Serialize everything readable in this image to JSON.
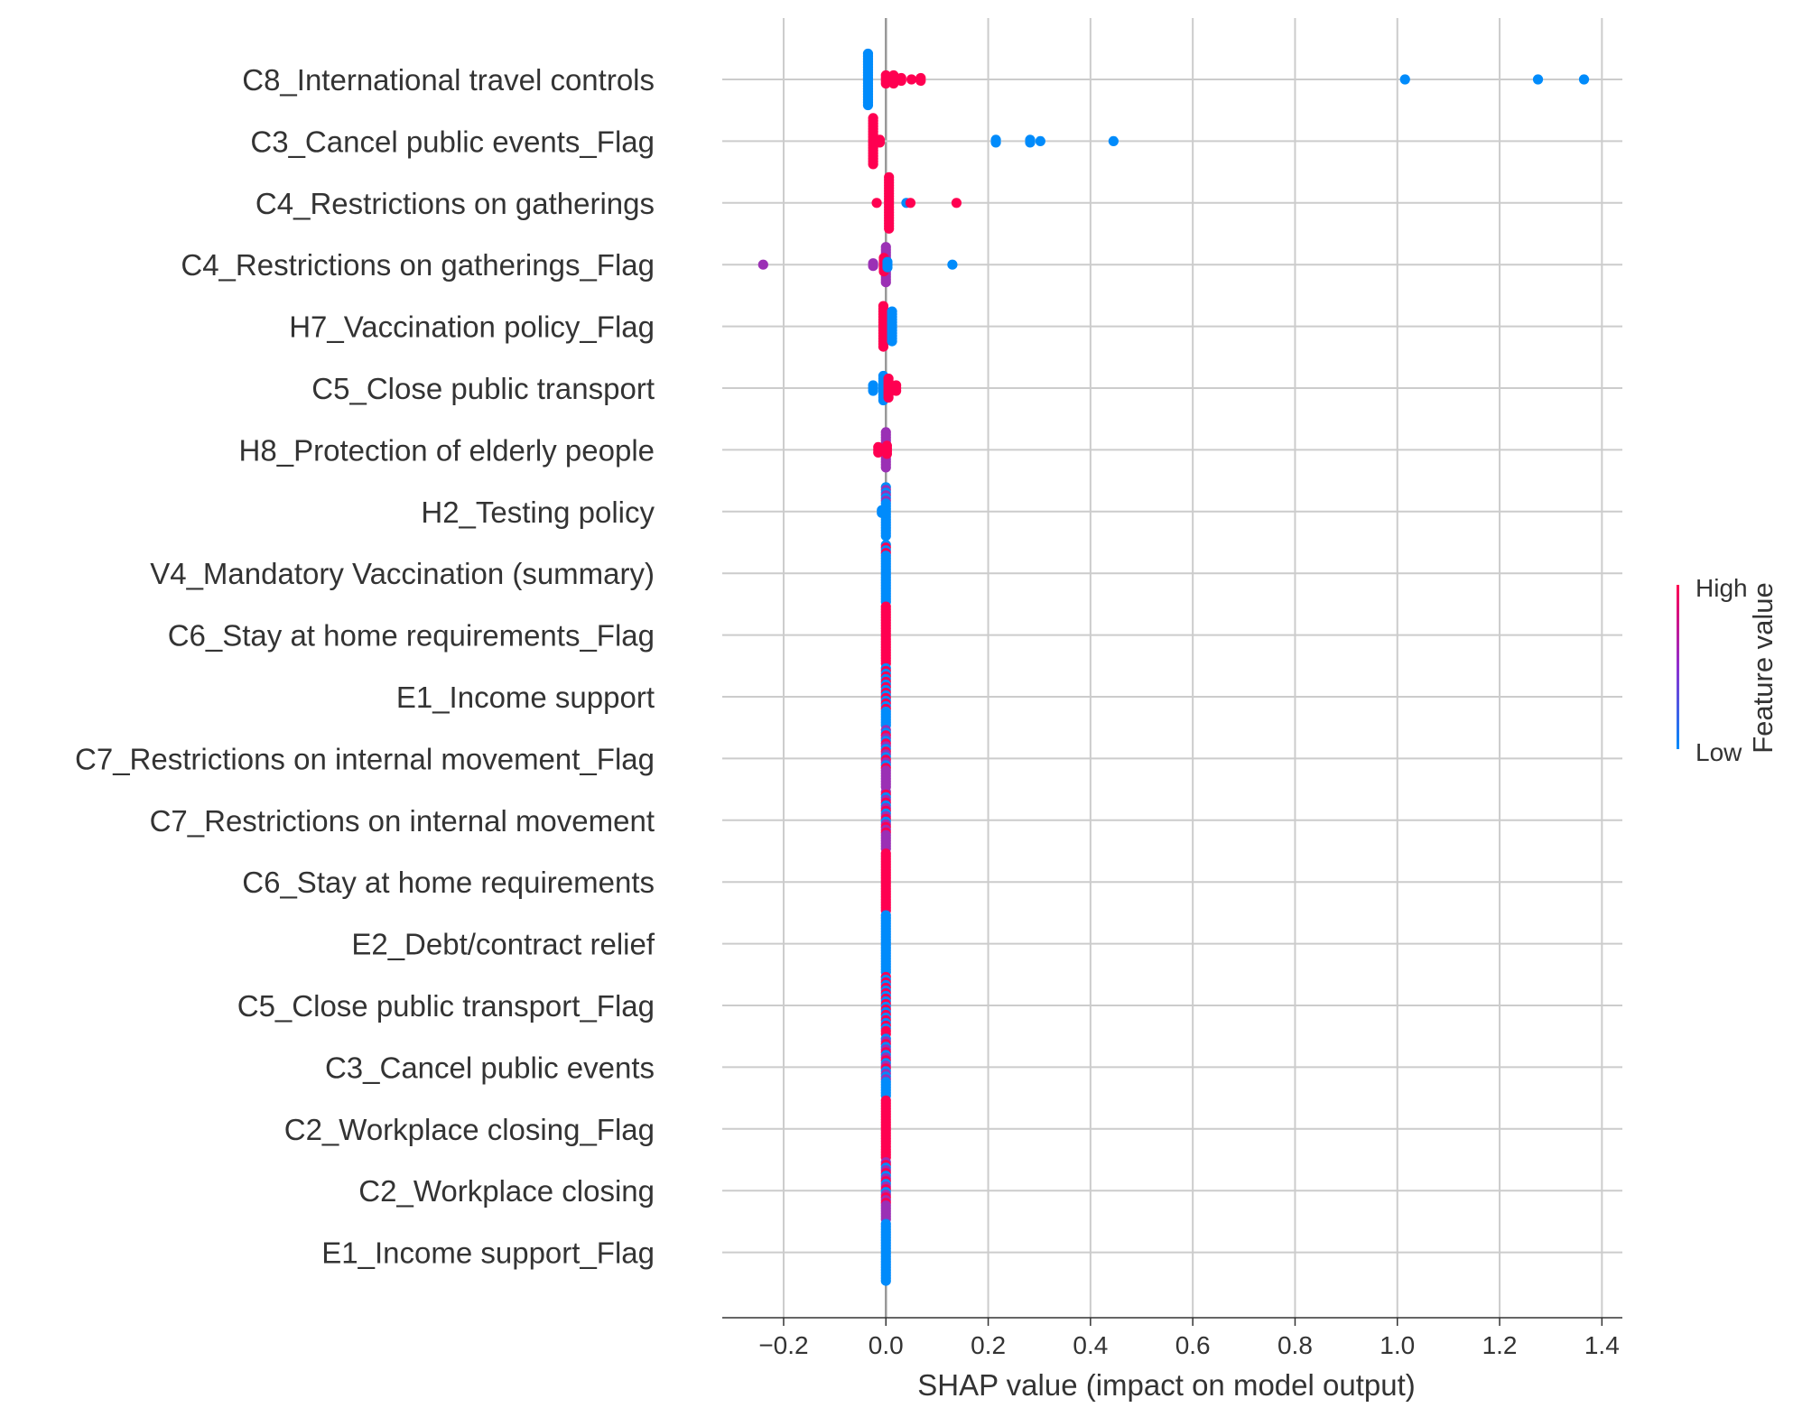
{
  "chart_data": {
    "type": "scatter",
    "subtype": "shap-beeswarm",
    "xlabel": "SHAP value (impact on model output)",
    "xlim": [
      -0.32,
      1.44
    ],
    "xticks": [
      -0.2,
      0.0,
      0.2,
      0.4,
      0.6,
      0.8,
      1.0,
      1.2,
      1.4
    ],
    "xtick_labels": [
      "−0.2",
      "0.0",
      "0.2",
      "0.4",
      "0.6",
      "0.8",
      "1.0",
      "1.2",
      "1.4"
    ],
    "grid": true,
    "colors": {
      "high": "#ff0051",
      "low": "#008bfb",
      "mid": "#9b30b5"
    },
    "colorbar": {
      "label": "Feature value",
      "high_label": "High",
      "low_label": "Low"
    },
    "features": [
      {
        "name": "C8_International travel controls",
        "points": [
          {
            "x": -0.035,
            "c": 0,
            "n": 20
          },
          {
            "x": 0.0,
            "c": 1,
            "n": 4
          },
          {
            "x": 0.015,
            "c": 1,
            "n": 4
          },
          {
            "x": 0.03,
            "c": 1,
            "n": 2
          },
          {
            "x": 0.05,
            "c": 1,
            "n": 1
          },
          {
            "x": 0.068,
            "c": 1,
            "n": 2
          },
          {
            "x": 1.015,
            "c": 0,
            "n": 1
          },
          {
            "x": 1.275,
            "c": 0,
            "n": 1
          },
          {
            "x": 1.365,
            "c": 0,
            "n": 1
          }
        ]
      },
      {
        "name": "C3_Cancel public events_Flag",
        "points": [
          {
            "x": -0.025,
            "c": 1,
            "n": 18
          },
          {
            "x": -0.012,
            "c": 1,
            "n": 2
          },
          {
            "x": 0.215,
            "c": 0,
            "n": 2
          },
          {
            "x": 0.282,
            "c": 0,
            "n": 2
          },
          {
            "x": 0.302,
            "c": 0,
            "n": 1
          },
          {
            "x": 0.445,
            "c": 0,
            "n": 1
          }
        ]
      },
      {
        "name": "C4_Restrictions on gatherings",
        "points": [
          {
            "x": 0.006,
            "c": 1,
            "n": 20
          },
          {
            "x": -0.018,
            "c": 1,
            "n": 1
          },
          {
            "x": 0.04,
            "c": 0,
            "n": 1
          },
          {
            "x": 0.048,
            "c": 1,
            "n": 1
          },
          {
            "x": 0.138,
            "c": 1,
            "n": 1
          }
        ]
      },
      {
        "name": "C4_Restrictions on gatherings_Flag",
        "points": [
          {
            "x": 0.0,
            "c": 0.5,
            "n": 14
          },
          {
            "x": -0.004,
            "c": 1,
            "n": 6
          },
          {
            "x": 0.003,
            "c": 0,
            "n": 3
          },
          {
            "x": -0.025,
            "c": 0.5,
            "n": 2
          },
          {
            "x": -0.24,
            "c": 0.5,
            "n": 1
          },
          {
            "x": 0.13,
            "c": 0,
            "n": 1
          }
        ]
      },
      {
        "name": "H7_Vaccination policy_Flag",
        "points": [
          {
            "x": -0.005,
            "c": 1,
            "n": 16
          },
          {
            "x": 0.012,
            "c": 0,
            "n": 12
          }
        ]
      },
      {
        "name": "C5_Close public transport",
        "points": [
          {
            "x": -0.005,
            "c": 0,
            "n": 10
          },
          {
            "x": 0.005,
            "c": 1,
            "n": 8
          },
          {
            "x": -0.025,
            "c": 0,
            "n": 3
          },
          {
            "x": 0.02,
            "c": 1,
            "n": 3
          }
        ]
      },
      {
        "name": "H8_Protection of elderly people",
        "points": [
          {
            "x": 0.0,
            "c": 0.5,
            "n": 14
          },
          {
            "x": -0.015,
            "c": 1,
            "n": 3
          },
          {
            "x": 0.002,
            "c": 1,
            "n": 4
          }
        ]
      },
      {
        "name": "H2_Testing policy",
        "points": [
          {
            "x": 0.0,
            "c": 0,
            "n": 16
          },
          {
            "x": 0.0,
            "c": 0.5,
            "n": 3
          },
          {
            "x": -0.008,
            "c": 0,
            "n": 2
          }
        ]
      },
      {
        "name": "V4_Mandatory Vaccination (summary)",
        "points": [
          {
            "x": 0.0,
            "c": 0,
            "n": 20
          },
          {
            "x": 0.0,
            "c": 1,
            "n": 2
          }
        ]
      },
      {
        "name": "C6_Stay at home requirements_Flag",
        "points": [
          {
            "x": 0.0,
            "c": 1,
            "n": 22
          }
        ]
      },
      {
        "name": "E1_Income support",
        "points": [
          {
            "x": 0.0,
            "c": 0,
            "n": 14
          },
          {
            "x": 0.0,
            "c": 1,
            "n": 8
          }
        ]
      },
      {
        "name": "C7_Restrictions on internal movement_Flag",
        "points": [
          {
            "x": 0.0,
            "c": 0.5,
            "n": 12
          },
          {
            "x": 0.0,
            "c": 0,
            "n": 5
          },
          {
            "x": 0.0,
            "c": 1,
            "n": 5
          }
        ]
      },
      {
        "name": "C7_Restrictions on internal movement",
        "points": [
          {
            "x": 0.0,
            "c": 0.5,
            "n": 12
          },
          {
            "x": 0.0,
            "c": 1,
            "n": 6
          },
          {
            "x": 0.0,
            "c": 0,
            "n": 4
          }
        ]
      },
      {
        "name": "C6_Stay at home requirements",
        "points": [
          {
            "x": 0.0,
            "c": 1,
            "n": 22
          }
        ]
      },
      {
        "name": "E2_Debt/contract relief",
        "points": [
          {
            "x": 0.0,
            "c": 0,
            "n": 22
          }
        ]
      },
      {
        "name": "C5_Close public transport_Flag",
        "points": [
          {
            "x": 0.0,
            "c": 1,
            "n": 12
          },
          {
            "x": 0.0,
            "c": 0,
            "n": 10
          }
        ]
      },
      {
        "name": "C3_Cancel public events",
        "points": [
          {
            "x": 0.0,
            "c": 0,
            "n": 12
          },
          {
            "x": 0.0,
            "c": 0.5,
            "n": 6
          },
          {
            "x": 0.0,
            "c": 1,
            "n": 4
          }
        ]
      },
      {
        "name": "C2_Workplace closing_Flag",
        "points": [
          {
            "x": 0.0,
            "c": 1,
            "n": 22
          }
        ]
      },
      {
        "name": "C2_Workplace closing",
        "points": [
          {
            "x": 0.0,
            "c": 0.5,
            "n": 12
          },
          {
            "x": 0.0,
            "c": 1,
            "n": 6
          },
          {
            "x": 0.0,
            "c": 0,
            "n": 4
          }
        ]
      },
      {
        "name": "E1_Income support_Flag",
        "points": [
          {
            "x": 0.0,
            "c": 0,
            "n": 22
          }
        ]
      }
    ]
  }
}
